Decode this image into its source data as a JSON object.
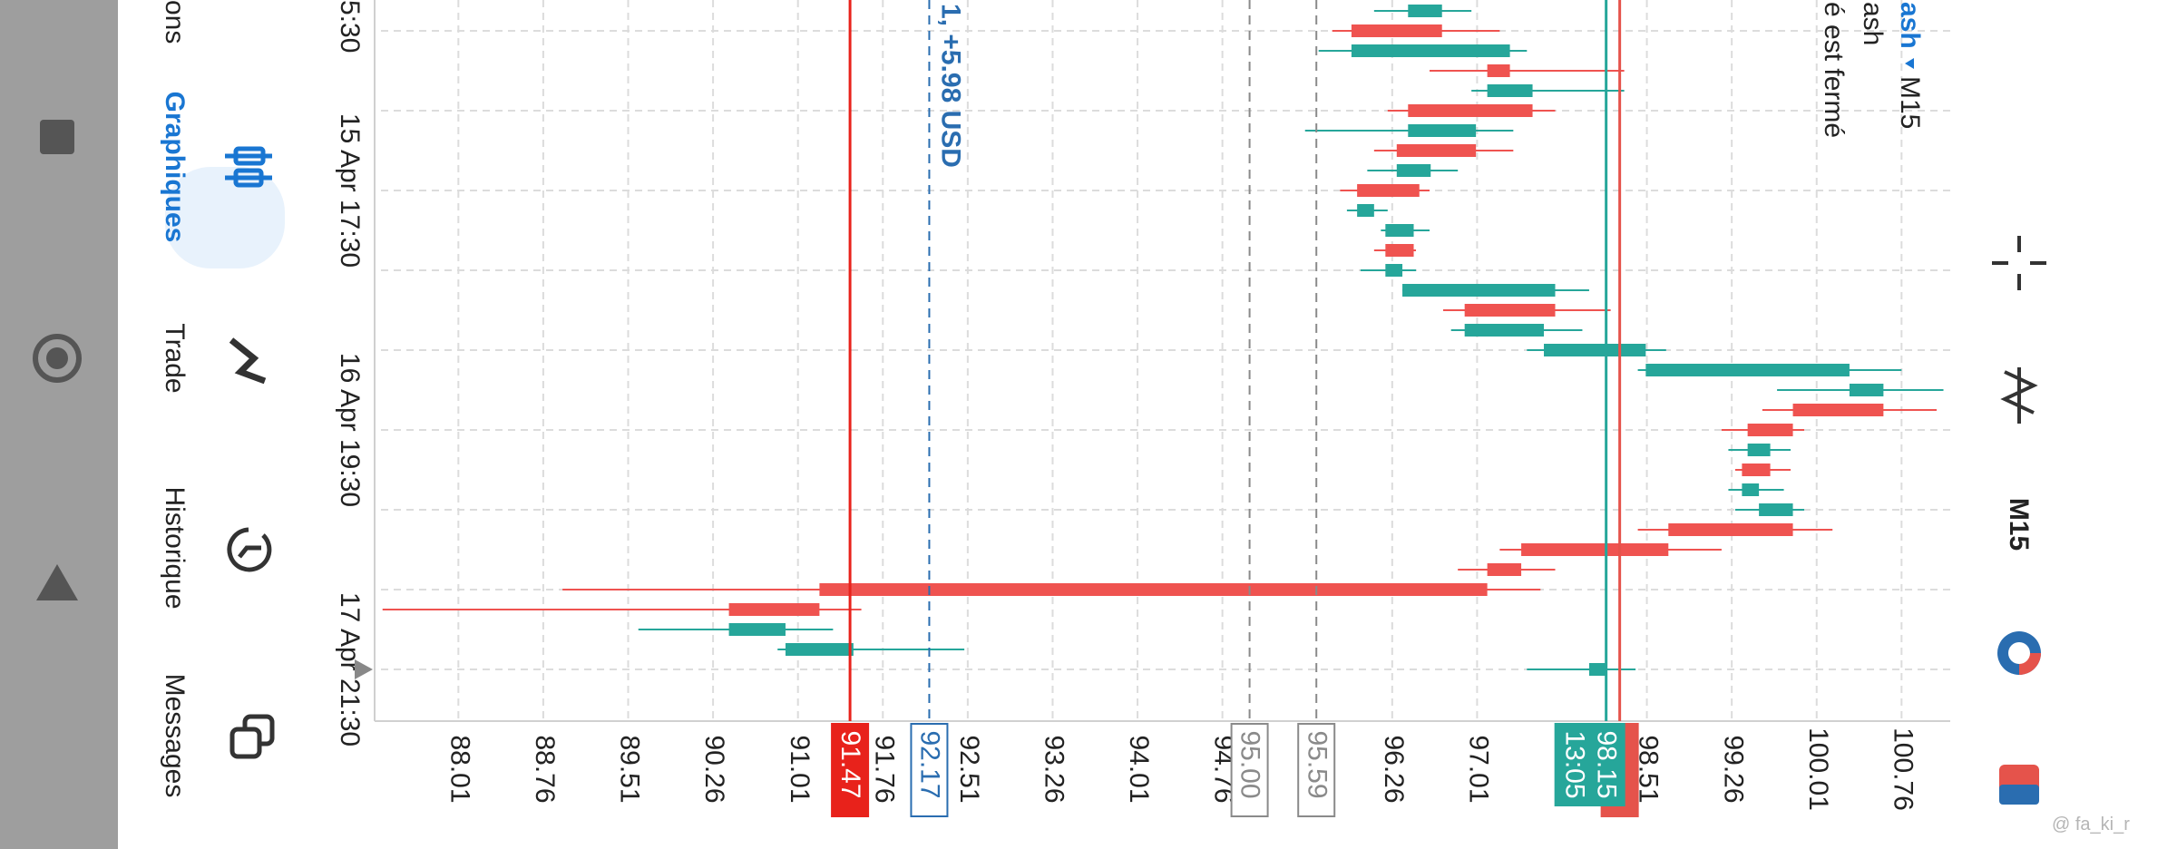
{
  "toolbar": {
    "timeframe": "M15"
  },
  "symbol": {
    "name": "ash",
    "timeframe": "M15",
    "description": "ash",
    "status": "é est fermé"
  },
  "chart_data": {
    "type": "candlestick",
    "categories": [
      null,
      null,
      null,
      null,
      null,
      null,
      null,
      null,
      null,
      "15 Apr 17:30",
      null,
      null,
      null,
      null,
      null,
      null,
      null,
      null,
      null,
      null,
      null,
      "16 Apr 19:30",
      null,
      null,
      null,
      null,
      null,
      null,
      null,
      null,
      null,
      null,
      null,
      "17 Apr 21:30"
    ],
    "x_label_clipped": "5:30",
    "open": [
      96.4,
      96.7,
      95.9,
      97.3,
      97.1,
      97.5,
      96.4,
      97.0,
      96.3,
      96.5,
      95.95,
      96.2,
      96.45,
      96.2,
      96.35,
      97.7,
      96.9,
      97.6,
      98.5,
      100.3,
      100.6,
      99.8,
      99.4,
      99.6,
      99.35,
      99.5,
      99.8,
      98.7,
      97.4,
      97.1,
      91.2,
      90.4,
      90.9,
      98.0
    ],
    "high": [
      96.96,
      97.21,
      97.45,
      98.31,
      98.31,
      97.7,
      97.33,
      97.33,
      96.84,
      96.59,
      96.22,
      96.59,
      96.47,
      96.47,
      98.0,
      98.19,
      97.94,
      98.68,
      100.76,
      101.13,
      101.07,
      99.9,
      99.78,
      99.78,
      99.72,
      99.9,
      100.15,
      99.17,
      97.7,
      97.57,
      91.57,
      91.32,
      92.48,
      98.41
    ],
    "low": [
      96.1,
      95.73,
      95.61,
      96.59,
      96.96,
      96.22,
      95.49,
      96.1,
      96.04,
      95.8,
      95.86,
      96.16,
      96.1,
      95.98,
      96.35,
      96.71,
      96.78,
      97.45,
      98.43,
      99.66,
      99.53,
      99.17,
      99.23,
      99.29,
      99.23,
      99.29,
      98.43,
      97.21,
      96.84,
      88.93,
      87.34,
      89.6,
      90.83,
      97.45
    ],
    "close": [
      96.7,
      95.9,
      97.3,
      97.1,
      97.5,
      96.4,
      97.0,
      96.3,
      96.6,
      95.95,
      96.1,
      96.45,
      96.2,
      96.35,
      97.7,
      96.9,
      97.6,
      98.5,
      100.3,
      100.6,
      99.8,
      99.4,
      99.6,
      99.35,
      99.5,
      99.8,
      98.7,
      97.4,
      97.1,
      91.2,
      90.4,
      90.9,
      91.5,
      98.15
    ],
    "up_color": "#26a69a",
    "down_color": "#ef5350",
    "ylim": [
      87.27,
      101.19
    ],
    "yticks": [
      88.01,
      88.76,
      89.51,
      90.26,
      91.01,
      91.76,
      92.51,
      93.26,
      94.01,
      94.76,
      96.26,
      97.01,
      98.51,
      99.26,
      100.01,
      100.76
    ],
    "grid": true,
    "price_lines": [
      {
        "value": 91.47,
        "label": "91.47",
        "color": "#e8221b",
        "style": "solid",
        "box": "filled"
      },
      {
        "value": 92.17,
        "label": "92.17",
        "color": "#2a6db0",
        "style": "dashed",
        "box": "outline",
        "text": "1, +5.98 USD"
      },
      {
        "value": 95.0,
        "label": "95.00",
        "color": "#8a8a8a",
        "style": "dashed",
        "box": "outline"
      },
      {
        "value": 95.59,
        "label": "95.59",
        "color": "#8a8a8a",
        "style": "dashed",
        "box": "outline"
      },
      {
        "value": 98.27,
        "color": "#e5534b",
        "style": "solid",
        "box": "filled"
      },
      {
        "value": 98.15,
        "label": "98.15",
        "sublabel": "13:05",
        "color": "#26a69a",
        "style": "solid",
        "box": "filled"
      }
    ]
  },
  "nav": {
    "items": [
      "ons",
      "Graphiques",
      "Trade",
      "Historique",
      "Messages"
    ],
    "active": 1
  },
  "watermark": "@ fa_ki_r"
}
